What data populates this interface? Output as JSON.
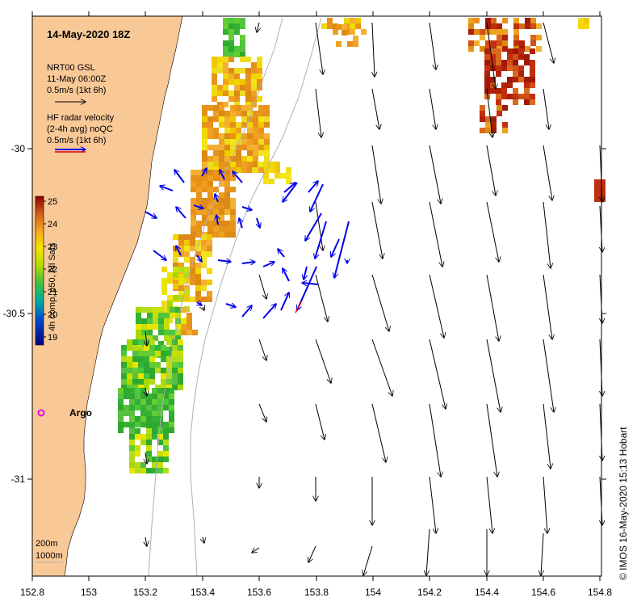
{
  "map": {
    "title": "14-May-2020 18Z",
    "legend": {
      "gsl_line1": "NRT00 GSL",
      "gsl_line2": "11-May 06:00Z",
      "gsl_line3": "0.5m/s (1kt 6h)",
      "hf_line1": "HF radar velocity",
      "hf_line2": "(2-4h avg) noQC",
      "hf_line3": "0.5m/s (1kt 6h)"
    },
    "colorbar": {
      "label": "4h comp, p50, All Sats",
      "ticks": [
        "25",
        "24",
        "23",
        "22",
        "21",
        "20",
        "19"
      ]
    },
    "argo_label": "Argo",
    "depth_legend": [
      "200m",
      "1000m"
    ],
    "credit": "© IMOS 16-May-2020 15:13 Hobart",
    "colors": {
      "land": "#f8c896",
      "gsl_arrow": "#000000",
      "hf_arrow": "#0000ee",
      "hf_arrow_alt": "#ee0000",
      "argo": "#ee00ee"
    }
  },
  "axes": {
    "x_ticks": [
      "152.8",
      "153",
      "153.2",
      "153.4",
      "153.6",
      "153.8",
      "154",
      "154.2",
      "154.4",
      "154.6",
      "154.8"
    ],
    "y_ticks": [
      "-30",
      "-30.5",
      "-31"
    ]
  }
}
